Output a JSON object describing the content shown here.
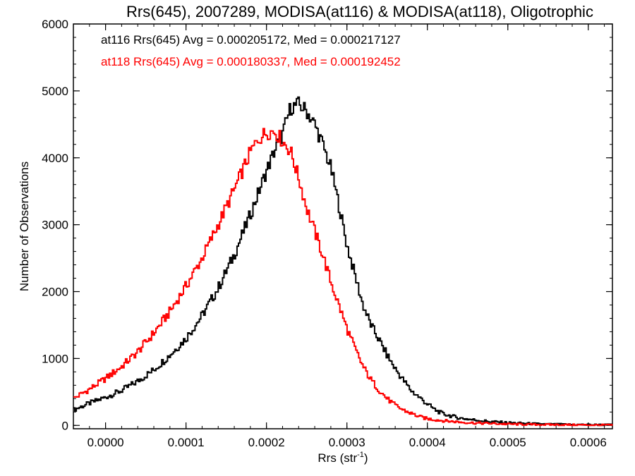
{
  "chart_data": {
    "type": "line",
    "title": "Rrs(645), 2007289, MODISA(at116) & MODISA(at118), Oligotrophic",
    "xlabel": "Rrs (str",
    "xlabel_sup": "-1",
    "xlabel_close": ")",
    "ylabel": "Number of Observations",
    "xlim": [
      -4e-05,
      0.00063
    ],
    "ylim": [
      -50,
      6000
    ],
    "xticks": [
      0.0,
      0.0001,
      0.0002,
      0.0003,
      0.0004,
      0.0005,
      0.0006
    ],
    "xtick_labels": [
      "0.0000",
      "0.0001",
      "0.0002",
      "0.0003",
      "0.0004",
      "0.0005",
      "0.0006"
    ],
    "yticks": [
      0,
      1000,
      2000,
      3000,
      4000,
      5000,
      6000
    ],
    "ytick_labels": [
      "0",
      "1000",
      "2000",
      "3000",
      "4000",
      "5000",
      "6000"
    ],
    "grid": false,
    "legend_position": "top-left",
    "series": [
      {
        "name": "at116",
        "legend": "at116 Rrs(645) Avg = 0.000205172, Med = 0.000217127",
        "color": "#000000",
        "x": [
          -4e-05,
          -2e-05,
          0.0,
          2e-05,
          4e-05,
          6e-05,
          8e-05,
          0.0001,
          0.00012,
          0.00014,
          0.00016,
          0.00018,
          0.0002,
          0.00021,
          0.00022,
          0.00023,
          0.00024,
          0.00025,
          0.00026,
          0.00027,
          0.00028,
          0.00029,
          0.0003,
          0.00031,
          0.00032,
          0.00033,
          0.00034,
          0.00035,
          0.00036,
          0.00037,
          0.00038,
          0.00039,
          0.0004,
          0.00041,
          0.00042,
          0.00044,
          0.00046,
          0.00048,
          0.0005,
          0.00052,
          0.00054,
          0.00056,
          0.00058,
          0.0006,
          0.00063
        ],
        "y": [
          230,
          330,
          420,
          520,
          660,
          830,
          1050,
          1300,
          1640,
          2050,
          2550,
          3150,
          3800,
          4100,
          4350,
          4750,
          4800,
          4700,
          4500,
          4200,
          3850,
          3300,
          2700,
          2250,
          1800,
          1500,
          1280,
          1050,
          850,
          680,
          520,
          420,
          320,
          230,
          170,
          110,
          80,
          55,
          40,
          30,
          20,
          15,
          12,
          10,
          8
        ]
      },
      {
        "name": "at118",
        "legend": "at118 Rrs(645) Avg = 0.000180337, Med = 0.000192452",
        "color": "#ff0000",
        "x": [
          -4e-05,
          -2e-05,
          0.0,
          2e-05,
          4e-05,
          6e-05,
          8e-05,
          0.0001,
          0.00012,
          0.00014,
          0.00016,
          0.00018,
          0.00019,
          0.0002,
          0.00021,
          0.00022,
          0.00023,
          0.00024,
          0.00025,
          0.00026,
          0.00027,
          0.00028,
          0.00029,
          0.0003,
          0.00031,
          0.00032,
          0.00033,
          0.00034,
          0.00035,
          0.00036,
          0.00037,
          0.00038,
          0.00039,
          0.0004,
          0.00042,
          0.00044,
          0.00046,
          0.00048,
          0.0005,
          0.00052,
          0.00054,
          0.00056,
          0.00058,
          0.0006,
          0.00063
        ],
        "y": [
          400,
          540,
          700,
          880,
          1100,
          1380,
          1700,
          2080,
          2500,
          3000,
          3520,
          4080,
          4280,
          4380,
          4400,
          4250,
          4100,
          3700,
          3250,
          2900,
          2550,
          2150,
          1800,
          1450,
          1150,
          880,
          680,
          530,
          400,
          300,
          230,
          180,
          130,
          100,
          70,
          50,
          35,
          28,
          20,
          15,
          12,
          10,
          8,
          6,
          5
        ]
      }
    ]
  }
}
